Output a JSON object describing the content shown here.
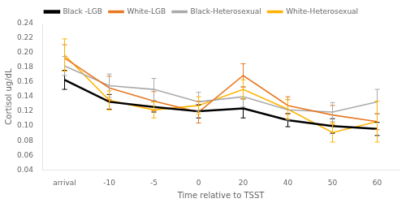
{
  "chart_data": {
    "type": "line",
    "xlabel": "Time relative to TSST",
    "ylabel": "Cortisol ug/dL",
    "categories": [
      "arrival",
      "-10",
      "-5",
      "0",
      "20",
      "40",
      "50",
      "60"
    ],
    "series": [
      {
        "name": "Black -LGB",
        "color": "#000000",
        "values": [
          0.163,
          0.133,
          0.126,
          0.12,
          0.124,
          0.108,
          0.1,
          0.096
        ],
        "errors": [
          0.013,
          0.01,
          0.007,
          0.009,
          0.013,
          0.009,
          0.01,
          0.009
        ]
      },
      {
        "name": "White-LGB",
        "color": "#E87722",
        "values": [
          0.193,
          0.152,
          0.134,
          0.119,
          0.169,
          0.128,
          0.115,
          0.106
        ],
        "errors": [
          0.018,
          0.016,
          0.013,
          0.015,
          0.016,
          0.012,
          0.013,
          0.011
        ]
      },
      {
        "name": "Black-Heterosexual",
        "color": "#aaaaaa",
        "values": [
          0.182,
          0.155,
          0.15,
          0.133,
          0.14,
          0.122,
          0.119,
          0.133
        ],
        "errors": [
          0.013,
          0.016,
          0.015,
          0.013,
          0.014,
          0.014,
          0.013,
          0.017
        ]
      },
      {
        "name": "White-Heterosexual",
        "color": "#FFB300",
        "values": [
          0.197,
          0.135,
          0.122,
          0.128,
          0.15,
          0.123,
          0.091,
          0.106
        ],
        "errors": [
          0.022,
          0.013,
          0.011,
          0.012,
          0.013,
          0.013,
          0.013,
          0.028
        ]
      }
    ],
    "ylim": [
      0.04,
      0.24
    ],
    "yticks": [
      0.04,
      0.06,
      0.08,
      {
        "value": 0.1,
        "label": "0.10"
      },
      0.12,
      0.14,
      0.16,
      0.18,
      {
        "value": 0.2,
        "label": "0.20"
      },
      0.22,
      0.24
    ],
    "grid": false,
    "legend": "top"
  }
}
